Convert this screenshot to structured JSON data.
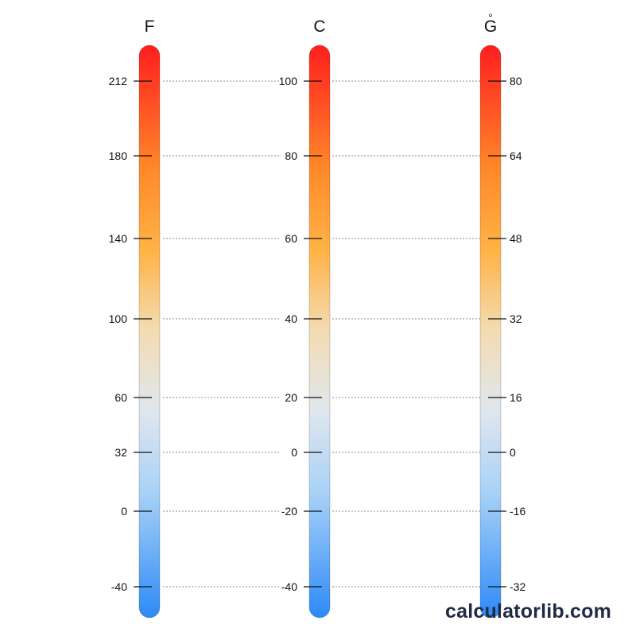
{
  "scales": [
    {
      "id": "fahrenheit",
      "title": "F",
      "ticks": [
        "212",
        "180",
        "140",
        "100",
        "60",
        "32",
        "0",
        "-40"
      ]
    },
    {
      "id": "celsius",
      "title": "C",
      "ticks": [
        "100",
        "80",
        "60",
        "40",
        "20",
        "0",
        "-20",
        "-40"
      ]
    },
    {
      "id": "g-scale",
      "title": "G",
      "title_ring": "°",
      "ticks": [
        "80",
        "64",
        "48",
        "32",
        "16",
        "0",
        "-16",
        "-32"
      ]
    }
  ],
  "gradient_colors": [
    "#ff1e1e",
    "#ff8a2a",
    "#ffb347",
    "#f3dcb3",
    "#dfe6ee",
    "#a9d2f7",
    "#2d8af7"
  ],
  "watermark": "calculatorlib.com"
}
